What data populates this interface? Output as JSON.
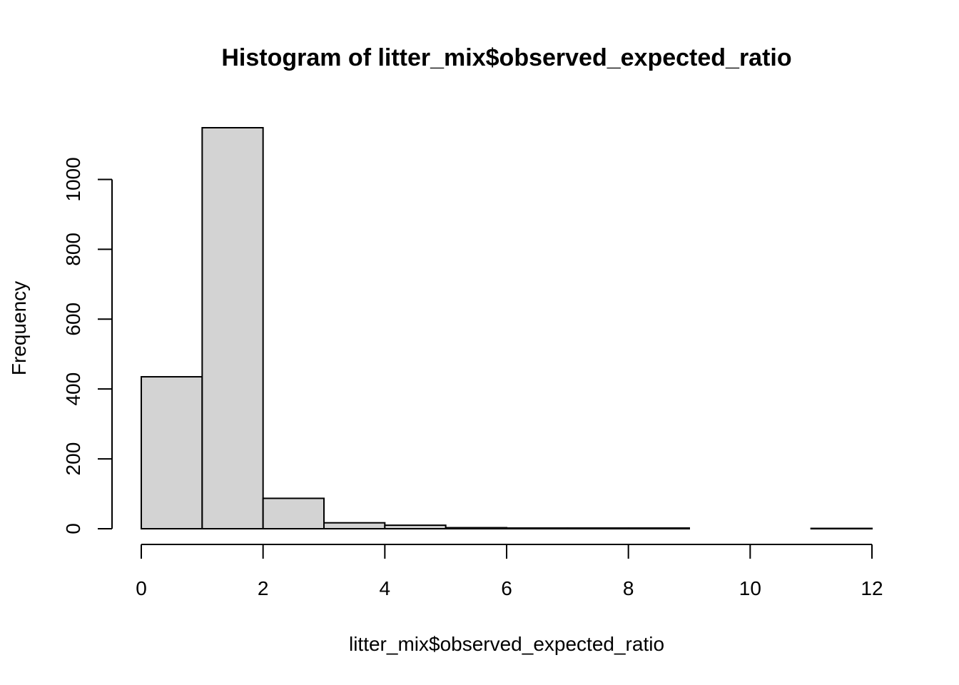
{
  "chart_data": {
    "type": "bar",
    "title": "Histogram of litter_mix$observed_expected_ratio",
    "xlabel": "litter_mix$observed_expected_ratio",
    "ylabel": "Frequency",
    "bins": [
      {
        "from": 0,
        "to": 1,
        "count": 435
      },
      {
        "from": 1,
        "to": 2,
        "count": 1148
      },
      {
        "from": 2,
        "to": 3,
        "count": 87
      },
      {
        "from": 3,
        "to": 4,
        "count": 17
      },
      {
        "from": 4,
        "to": 5,
        "count": 10
      },
      {
        "from": 5,
        "to": 6,
        "count": 3
      },
      {
        "from": 6,
        "to": 7,
        "count": 2
      },
      {
        "from": 7,
        "to": 8,
        "count": 2
      },
      {
        "from": 8,
        "to": 9,
        "count": 2
      },
      {
        "from": 9,
        "to": 10,
        "count": 0
      },
      {
        "from": 10,
        "to": 11,
        "count": 0
      },
      {
        "from": 11,
        "to": 12,
        "count": 1
      }
    ],
    "xlim": [
      0,
      12
    ],
    "ylim": [
      0,
      1148
    ],
    "x_ticks": [
      0,
      2,
      4,
      6,
      8,
      10,
      12
    ],
    "y_ticks": [
      0,
      200,
      400,
      600,
      800,
      1000
    ],
    "grid": false,
    "legend": "none",
    "bar_color": "#d3d3d3",
    "stroke_color": "#000000"
  }
}
